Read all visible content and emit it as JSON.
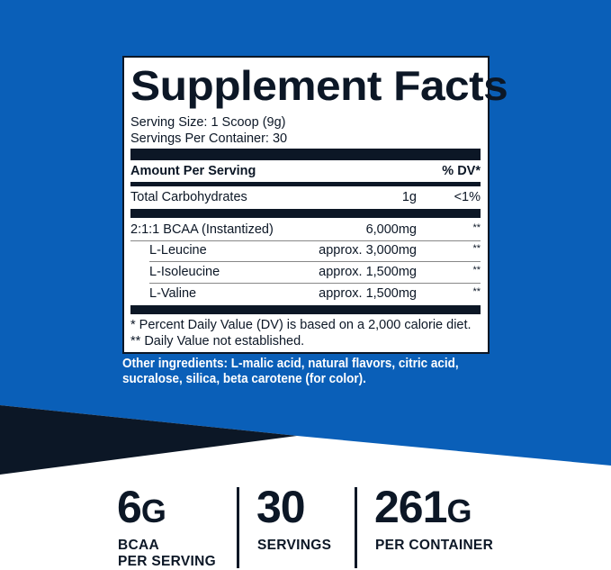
{
  "colors": {
    "blue": "#0a5fb8",
    "navy": "#0c1726",
    "white": "#ffffff"
  },
  "facts": {
    "title": "Supplement Facts",
    "serving_size": "Serving Size: 1 Scoop (9g)",
    "servings_per_container": "Servings Per Container: 30",
    "header": {
      "amount": "Amount Per Serving",
      "dv": "% DV*"
    },
    "rows": [
      {
        "name": "Total Carbohydrates",
        "amount": "1g",
        "dv": "<1%"
      },
      {
        "name": "2:1:1 BCAA (Instantized)",
        "amount": "6,000mg",
        "dv": "**"
      },
      {
        "name": "L-Leucine",
        "amount": "approx. 3,000mg",
        "dv": "**"
      },
      {
        "name": "L-Isoleucine",
        "amount": "approx. 1,500mg",
        "dv": "**"
      },
      {
        "name": "L-Valine",
        "amount": "approx. 1,500mg",
        "dv": "**"
      }
    ],
    "footnote1": "* Percent Daily Value (DV) is based on a 2,000 calorie diet.",
    "footnote2": "** Daily Value not established."
  },
  "ingredients": {
    "line1": "Other ingredients: L-malic acid, natural flavors, citric acid,",
    "line2": "sucralose, silica, beta carotene (for color)."
  },
  "stats": [
    {
      "value": "6",
      "unit": "G",
      "label1": "BCAA",
      "label2": "PER SERVING"
    },
    {
      "value": "30",
      "unit": "",
      "label1": "SERVINGS",
      "label2": ""
    },
    {
      "value": "261",
      "unit": "G",
      "label1": "PER CONTAINER",
      "label2": ""
    }
  ]
}
